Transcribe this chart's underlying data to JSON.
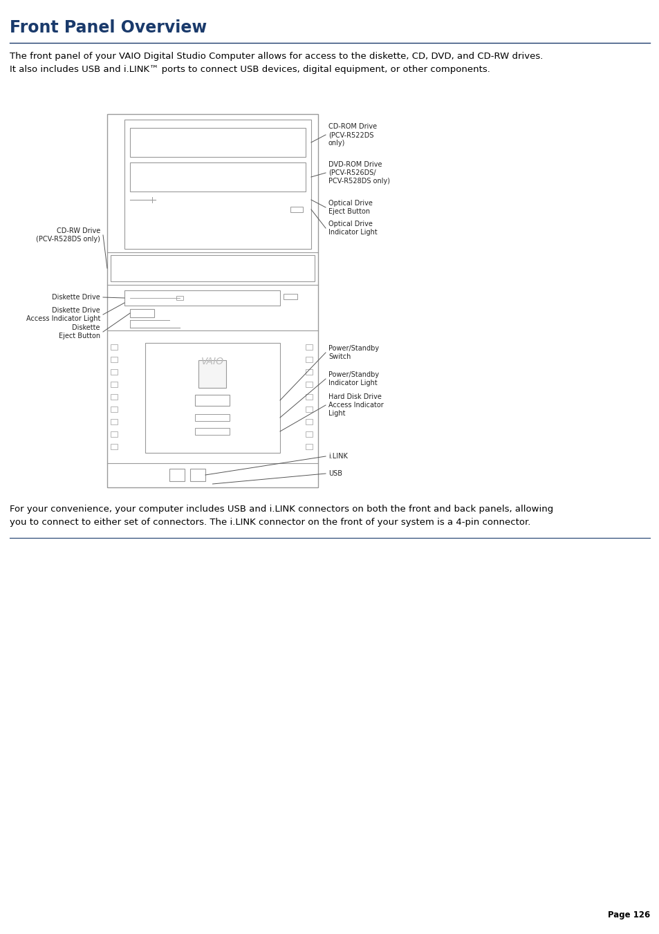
{
  "title": "Front Panel Overview",
  "title_color": "#1a3a6b",
  "title_fontsize": 17,
  "title_bold": true,
  "intro_text": "The front panel of your VAIO Digital Studio Computer allows for access to the diskette, CD, DVD, and CD-RW drives.\nIt also includes USB and i.LINK™ ports to connect USB devices, digital equipment, or other components.",
  "intro_fontsize": 9.5,
  "footer_text": "For your convenience, your computer includes USB and i.LINK connectors on both the front and back panels, allowing\nyou to connect to either set of connectors. The i.LINK connector on the front of your system is a 4-pin connector.",
  "footer_fontsize": 9.5,
  "page_number": "Page 126",
  "page_fontsize": 8.5,
  "bg_color": "#ffffff",
  "line_color": "#1a3a6b",
  "body_text_color": "#000000",
  "diagram_line_color": "#999999",
  "ann_line_color": "#555555",
  "ann_text_color": "#222222"
}
